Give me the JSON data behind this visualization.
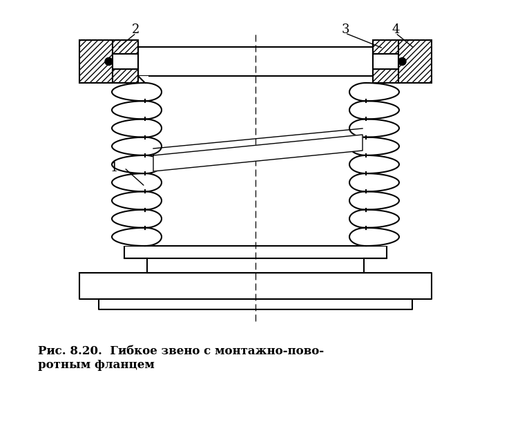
{
  "caption_line1": "Рис. 8.20.  Гибкое звено с монтажно-пово-",
  "caption_line2": "ротным фланцем",
  "bg_color": "#ffffff",
  "line_color": "#000000",
  "fig_width": 7.4,
  "fig_height": 6.11,
  "label_1": "1",
  "label_2": "2",
  "label_3": "3",
  "label_4": "4"
}
